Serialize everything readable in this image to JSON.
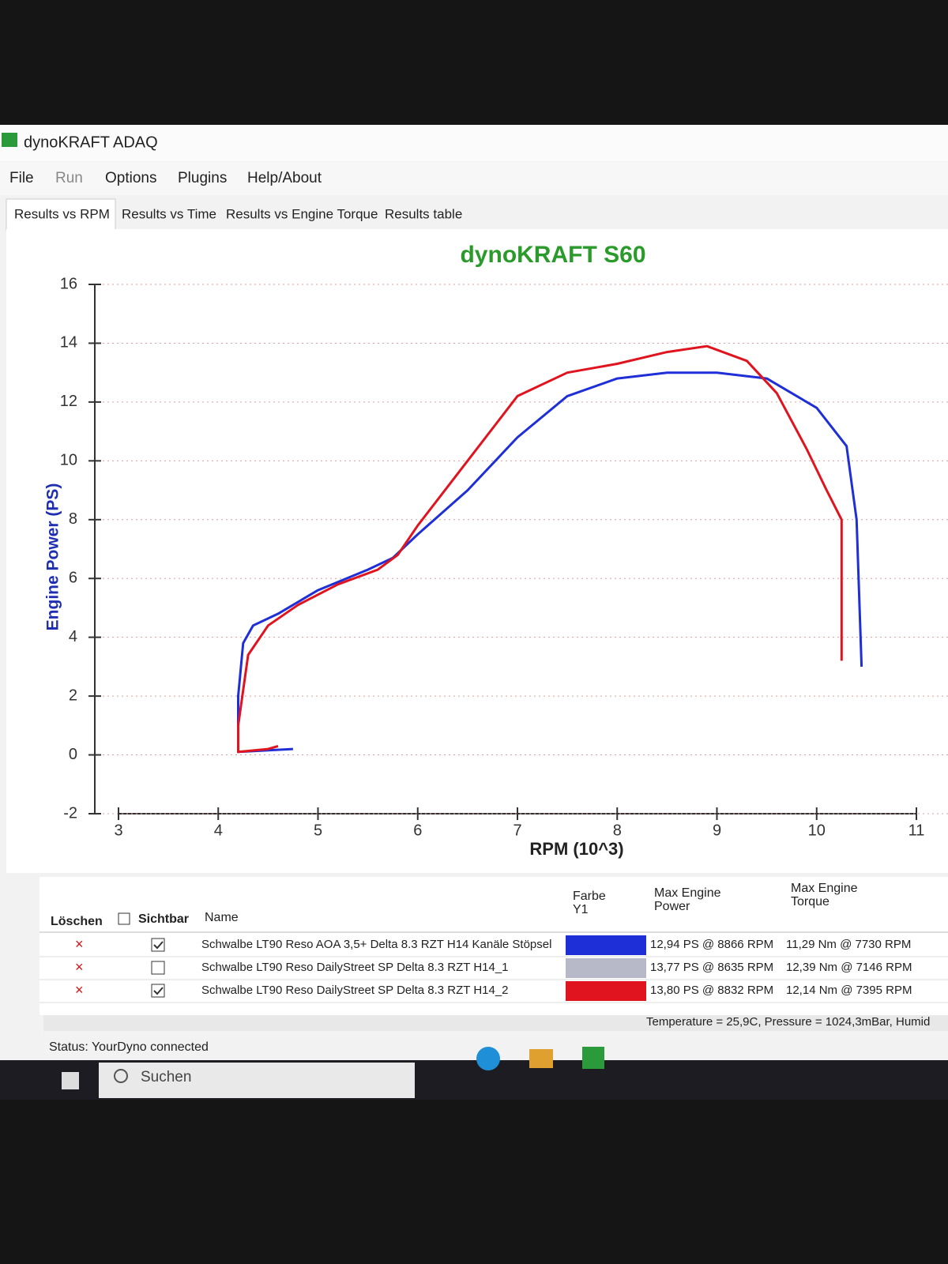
{
  "window": {
    "title": "dynoKRAFT ADAQ"
  },
  "menu": [
    "File",
    "Run",
    "Options",
    "Plugins",
    "Help/About"
  ],
  "tabs": [
    "Results vs RPM",
    "Results vs Time",
    "Results vs Engine Torque",
    "Results table"
  ],
  "chart_data": {
    "type": "line",
    "title": "dynoKRAFT S60",
    "x_label": "RPM (10^3)",
    "y_label": "Engine Power (PS)",
    "xlim": [
      3,
      11
    ],
    "xticks": [
      3,
      4,
      5,
      6,
      7,
      8,
      9,
      10,
      11
    ],
    "ylim": [
      -2,
      16
    ],
    "yticks": [
      -2,
      0,
      2,
      4,
      6,
      8,
      10,
      12,
      14,
      16
    ],
    "grid": true,
    "series": [
      {
        "color": "#1f2fd8",
        "x": [
          4.75,
          4.2,
          4.2,
          4.25,
          4.35,
          4.6,
          5,
          5.5,
          5.75,
          6,
          6.5,
          7,
          7.5,
          8,
          8.5,
          9,
          9.5,
          10,
          10.3,
          10.4,
          10.45
        ],
        "values": [
          0.2,
          0.1,
          2,
          3.8,
          4.4,
          4.8,
          5.6,
          6.3,
          6.7,
          7.5,
          9,
          10.8,
          12.2,
          12.8,
          13,
          13,
          12.8,
          11.8,
          10.5,
          8,
          3
        ]
      },
      {
        "color": "#e0141e",
        "x": [
          4.6,
          4.5,
          4.2,
          4.2,
          4.3,
          4.5,
          4.8,
          5.2,
          5.6,
          5.8,
          6,
          6.5,
          7,
          7.5,
          8,
          8.5,
          8.9,
          9.3,
          9.6,
          9.9,
          10.1,
          10.25,
          10.25,
          10.25
        ],
        "values": [
          0.3,
          0.2,
          0.1,
          1,
          3.4,
          4.4,
          5.1,
          5.8,
          6.3,
          6.8,
          7.8,
          10,
          12.2,
          13,
          13.3,
          13.7,
          13.9,
          13.4,
          12.3,
          10.4,
          9,
          8,
          6,
          3.2
        ]
      }
    ]
  },
  "table": {
    "headers": [
      "Löschen",
      "Sichtbar",
      "Name",
      "Farbe",
      "Y1",
      "Max Engine",
      "Power",
      "Max Engine",
      "Torque"
    ],
    "rows": [
      {
        "visible": true,
        "name": "Schwalbe LT90 Reso AOA 3,5+ Delta 8.3 RZT H14 Kanäle Stöpsel",
        "color": "#1f2fd8",
        "power": "12,94 PS @ 8866 RPM",
        "torque": "11,29 Nm @ 7730 RPM"
      },
      {
        "visible": false,
        "name": "Schwalbe LT90 Reso DailyStreet SP Delta 8.3 RZT H14_1",
        "color": "#b8b9c8",
        "power": "13,77 PS @ 8635 RPM",
        "torque": "12,39 Nm @ 7146 RPM"
      },
      {
        "visible": true,
        "name": "Schwalbe LT90 Reso DailyStreet SP Delta 8.3 RZT H14_2",
        "color": "#e0141e",
        "power": "13,80 PS @ 8832 RPM",
        "torque": "12,14 Nm @ 7395 RPM"
      }
    ]
  },
  "conditions": "Temperature = 25,9C, Pressure = 1024,3mBar, Humid",
  "status": "Status: YourDyno connected",
  "taskbar": {
    "search": "Suchen"
  }
}
